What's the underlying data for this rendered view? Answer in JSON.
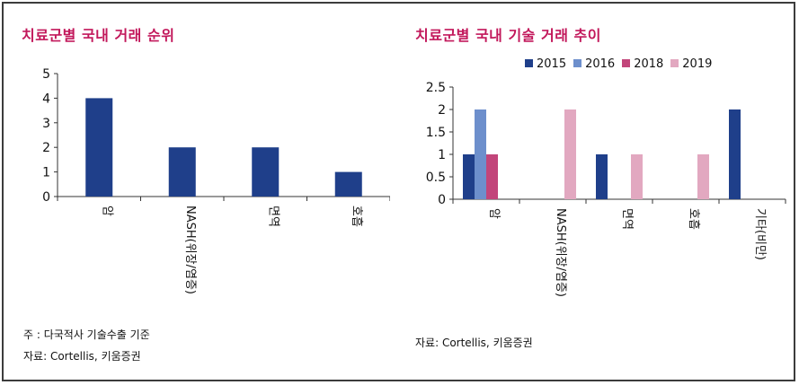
{
  "colors": {
    "title": "#c2185b",
    "s2015": "#1f3f8a",
    "s2016": "#6d8fcc",
    "s2018": "#c2457a",
    "s2019": "#e2a8c0"
  },
  "left": {
    "title": "치료군별 국내 거래 순위",
    "note": "주 : 다국적사 기술수출 기준",
    "source": "자료: Cortellis, 키움증권"
  },
  "right": {
    "title": "치료군별 국내 기술 거래 추이",
    "source": "자료: Cortellis, 키움증권"
  },
  "chart_data": [
    {
      "type": "bar",
      "title": "치료군별 국내 거래 순위",
      "categories": [
        "암",
        "NASH(위장/염증)",
        "면역",
        "호흡"
      ],
      "values": [
        4,
        2,
        2,
        1
      ],
      "ylim": [
        0,
        5
      ],
      "yticks": [
        "0",
        "1",
        "2",
        "3",
        "4",
        "5"
      ],
      "grid": false
    },
    {
      "type": "bar",
      "title": "치료군별 국내 기술 거래 추이",
      "categories": [
        "암",
        "NASH(위장/염증)",
        "면역",
        "호흡",
        "기타(비만)"
      ],
      "series": [
        {
          "name": "2015",
          "values": [
            1,
            0,
            1,
            0,
            2
          ]
        },
        {
          "name": "2016",
          "values": [
            2,
            0,
            0,
            0,
            0
          ]
        },
        {
          "name": "2018",
          "values": [
            1,
            0,
            0,
            0,
            0
          ]
        },
        {
          "name": "2019",
          "values": [
            0,
            2,
            1,
            1,
            0
          ]
        }
      ],
      "ylim": [
        0,
        2.5
      ],
      "yticks": [
        "0",
        "0.5",
        "1",
        "1.5",
        "2",
        "2.5"
      ],
      "legend": "top",
      "grid": false
    }
  ]
}
